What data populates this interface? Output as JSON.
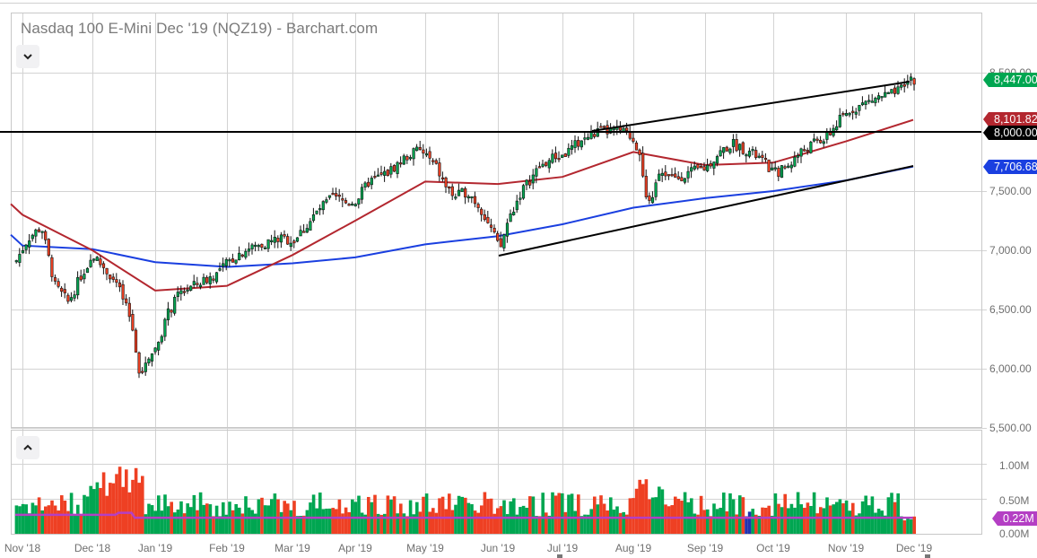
{
  "header": {
    "title": "Nasdaq 100 E-Mini Dec '19 (NQZ19) - Barchart.com",
    "collapse_price_icon": "chevron-down-icon",
    "collapse_volume_icon": "chevron-up-icon"
  },
  "price_axis": {
    "ticks": [
      "8,500.00",
      "8,000.00",
      "7,500.00",
      "7,000.00",
      "6,500.00",
      "6,000.00",
      "5,500.00"
    ]
  },
  "price_tags": {
    "last": {
      "label": "8,447.00",
      "color": "#00a651"
    },
    "ma_red": {
      "label": "8,101.82",
      "color": "#b3272f"
    },
    "hline": {
      "label": "8,000.00",
      "color": "#000000"
    },
    "ma_blue": {
      "label": "7,706.68",
      "color": "#1a3fe0"
    }
  },
  "volume_axis": {
    "ticks": [
      "1.00M",
      "0.50M",
      "0.00M"
    ],
    "tag": {
      "label": "0.22M",
      "color": "#b43fc4"
    }
  },
  "x_axis": {
    "labels": [
      "Nov '18",
      "Dec '18",
      "Jan '19",
      "Feb '19",
      "Mar '19",
      "Apr '19",
      "May '19",
      "Jun '19",
      "Jul '19",
      "Aug '19",
      "Sep '19",
      "Oct '19",
      "Nov '19",
      "Dec '19"
    ]
  },
  "colors": {
    "up": "#00a651",
    "down": "#ee4023",
    "ma50": "#b3272f",
    "ma200": "#1a3fe0",
    "volume_ma": "#b43fc4",
    "grid": "#d0d0d0"
  },
  "chart_data": {
    "type": "candlestick",
    "title": "Nasdaq 100 E-Mini Dec '19 (NQZ19) - Barchart.com",
    "xlabel": "",
    "ylabel": "",
    "ylim": [
      5500,
      8600
    ],
    "x_ticks": [
      "Nov '18",
      "Dec '18",
      "Jan '19",
      "Feb '19",
      "Mar '19",
      "Apr '19",
      "May '19",
      "Jun '19",
      "Jul '19",
      "Aug '19",
      "Sep '19",
      "Oct '19",
      "Nov '19",
      "Dec '19"
    ],
    "y_ticks": [
      5500,
      6000,
      6500,
      7000,
      7500,
      8000,
      8500
    ],
    "grid": true,
    "approx_monthly_close": {
      "x": [
        "Nov '18",
        "Dec '18",
        "Jan '19",
        "Feb '19",
        "Mar '19",
        "Apr '19",
        "May '19",
        "Jun '19",
        "Jul '19",
        "Aug '19",
        "Sep '19",
        "Oct '19",
        "Nov '19"
      ],
      "values": [
        6900,
        6980,
        6180,
        6900,
        7080,
        7420,
        7780,
        7080,
        7650,
        7880,
        7560,
        7850,
        8200
      ]
    },
    "series": [
      {
        "name": "Last price",
        "value": 8447.0
      },
      {
        "name": "Moving average (red, ~50-day)",
        "value": 8101.82,
        "approx_path": [
          [
            "Nov '18",
            7300
          ],
          [
            "Dec '18",
            7000
          ],
          [
            "Jan '19",
            6660
          ],
          [
            "Feb '19",
            6700
          ],
          [
            "Mar '19",
            6960
          ],
          [
            "Apr '19",
            7250
          ],
          [
            "May '19",
            7580
          ],
          [
            "Jun '19",
            7560
          ],
          [
            "Jul '19",
            7620
          ],
          [
            "Aug '19",
            7830
          ],
          [
            "Sep '19",
            7720
          ],
          [
            "Oct '19",
            7740
          ],
          [
            "Nov '19",
            7920
          ],
          [
            "Dec '19",
            8101.82
          ]
        ]
      },
      {
        "name": "Moving average (blue, ~200-day)",
        "value": 7706.68,
        "approx_path": [
          [
            "Nov '18",
            7040
          ],
          [
            "Dec '18",
            7010
          ],
          [
            "Jan '19",
            6900
          ],
          [
            "Feb '19",
            6860
          ],
          [
            "Mar '19",
            6890
          ],
          [
            "Apr '19",
            6940
          ],
          [
            "May '19",
            7050
          ],
          [
            "Jun '19",
            7120
          ],
          [
            "Jul '19",
            7220
          ],
          [
            "Aug '19",
            7360
          ],
          [
            "Sep '19",
            7440
          ],
          [
            "Oct '19",
            7500
          ],
          [
            "Nov '19",
            7590
          ],
          [
            "Dec '19",
            7706.68
          ]
        ]
      },
      {
        "name": "Horizontal level",
        "value": 8000.0
      },
      {
        "name": "Upper trendline",
        "points": [
          [
            "Jul '19 mid",
            8040
          ],
          [
            "late Nov '19",
            8420
          ]
        ]
      },
      {
        "name": "Lower trendline",
        "points": [
          [
            "early Jun '19",
            6950
          ],
          [
            "late Nov '19",
            7700
          ]
        ]
      }
    ],
    "volume": {
      "ylim": [
        0,
        1200000
      ],
      "y_ticks": [
        "0.00M",
        "0.50M",
        "1.00M"
      ],
      "last_volume_ma": "0.22M",
      "peak_approx": "1.10M (late Dec '18)"
    }
  }
}
